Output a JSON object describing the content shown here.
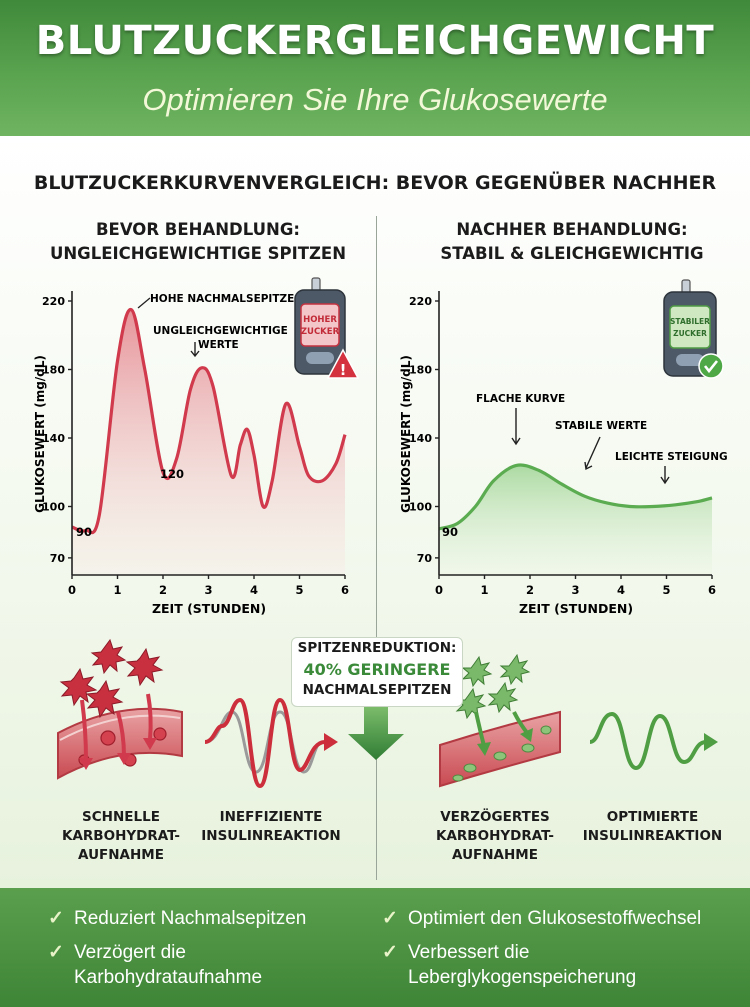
{
  "header": {
    "title": "BLUTZUCKERGLEICHGEWICHT",
    "subtitle": "Optimieren Sie Ihre Glukosewerte"
  },
  "section_title": "BLUTZUCKERKURVENVERGLEICH: BEVOR GEGENÜBER NACHHER",
  "left_panel": {
    "title_line1": "BEVOR BEHANDLUNG:",
    "title_line2": "UNGLEICHGEWICHTIGE SPITZEN",
    "ann_peak": "HOHE NACHMALSEPITZE",
    "ann_unbal_1": "UNGLEICHGEWICHTIGE",
    "ann_unbal_2": "WERTE",
    "val_start": "90",
    "val_low": "120",
    "meter_text_1": "HOHER",
    "meter_text_2": "ZUCKER"
  },
  "right_panel": {
    "title_line1": "NACHHER BEHANDLUNG:",
    "title_line2": "STABIL & GLEICHGEWICHTIG",
    "ann_flat": "FLACHE KURVE",
    "ann_stable": "STABILE WERTE",
    "ann_slope": "LEICHTE STEIGUNG",
    "val_start": "90",
    "meter_text_1": "STABILER",
    "meter_text_2": "ZUCKER"
  },
  "chart_data": [
    {
      "type": "area",
      "title": "BEVOR BEHANDLUNG: UNGLEICHGEWICHTIGE SPITZEN",
      "xlabel": "ZEIT (STUNDEN)",
      "ylabel": "GLUKOSEWERT (mg/dL)",
      "xlim": [
        0,
        6
      ],
      "ylim": [
        60,
        220
      ],
      "xticks": [
        "0",
        "1",
        "2",
        "3",
        "4",
        "5",
        "6"
      ],
      "yticks": [
        "70",
        "100",
        "140",
        "180",
        "220"
      ],
      "x": [
        0,
        0.3,
        0.6,
        1.0,
        1.3,
        1.6,
        2.0,
        2.3,
        2.6,
        2.85,
        3.1,
        3.5,
        3.7,
        3.85,
        4.0,
        4.2,
        4.4,
        4.7,
        5.0,
        5.2,
        5.5,
        5.8,
        6.0
      ],
      "y": [
        88,
        86,
        95,
        185,
        215,
        180,
        120,
        128,
        168,
        181,
        170,
        118,
        136,
        145,
        130,
        100,
        115,
        160,
        135,
        118,
        115,
        125,
        142
      ],
      "color": "#d03a4c"
    },
    {
      "type": "area",
      "title": "NACHHER BEHANDLUNG: STABIL & GLEICHGEWICHTIG",
      "xlabel": "ZEIT (STUNDEN)",
      "ylabel": "GLUKOSEWERT (mg/dL)",
      "xlim": [
        0,
        6
      ],
      "ylim": [
        60,
        220
      ],
      "xticks": [
        "0",
        "1",
        "2",
        "3",
        "4",
        "5",
        "6"
      ],
      "yticks": [
        "70",
        "100",
        "140",
        "180",
        "220"
      ],
      "x": [
        0,
        0.4,
        0.8,
        1.2,
        1.7,
        2.2,
        2.7,
        3.2,
        3.7,
        4.2,
        4.7,
        5.2,
        5.7,
        6.0
      ],
      "y": [
        87,
        90,
        100,
        115,
        124,
        121,
        113,
        106,
        102,
        100,
        100,
        101,
        103,
        105
      ],
      "color": "#5bab51"
    }
  ],
  "middle": {
    "line1": "SPITZENREDUKTION:",
    "line2": "40% GERINGERE",
    "line3": "NACHMALSEPITZEN"
  },
  "captions": {
    "c1_l1": "SCHNELLE",
    "c1_l2": "KARBOHYDRAT-",
    "c1_l3": "AUFNAHME",
    "c2_l1": "INEFFIZIENTE",
    "c2_l2": "INSULINREAKTION",
    "c3_l1": "VERZÖGERTES",
    "c3_l2": "KARBOHYDRAT-",
    "c3_l3": "AUFNAHME",
    "c4_l1": "OPTIMIERTE",
    "c4_l2": "INSULINREAKTION"
  },
  "footer": {
    "check": "✓",
    "b1": "Reduziert Nachmalsepitzen",
    "b2": "Optimiert den Glukosestoffwechsel",
    "b3_l1": "Verzögert die",
    "b3_l2": "Karbohydrataufnahme",
    "b4_l1": "Verbessert die",
    "b4_l2": "Leberglykogenspeicherung"
  },
  "colors": {
    "header_green": "#4e9a45",
    "red": "#d03a4c",
    "green": "#5bab51"
  }
}
